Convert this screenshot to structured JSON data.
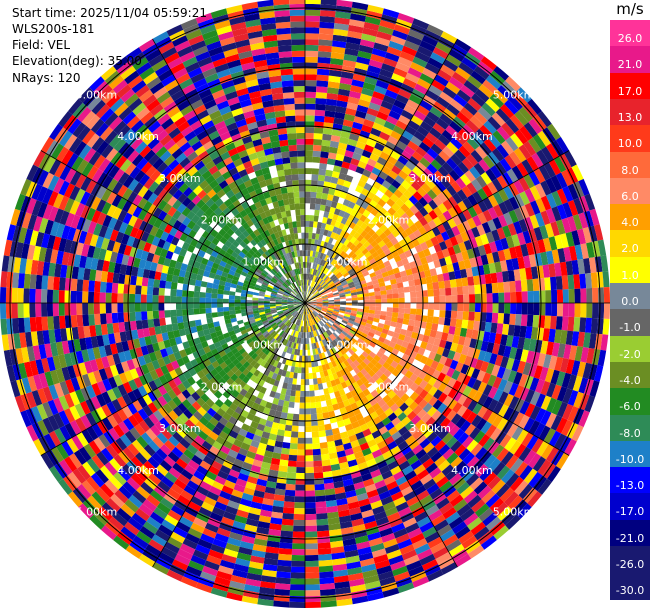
{
  "info": {
    "start_time": "Start time: 2025/11/04 05:59:21",
    "site": "WLS200s-181",
    "field": "Field: VEL",
    "elevation": "Elevation(deg): 35.00",
    "nrays": "NRays: 120"
  },
  "colorbar": {
    "unit": "m/s",
    "ticks": [
      "26.0",
      "21.0",
      "17.0",
      "13.0",
      "10.0",
      "8.0",
      "6.0",
      "4.0",
      "2.0",
      "1.0",
      "0.0",
      "-1.0",
      "-2.0",
      "-4.0",
      "-6.0",
      "-8.0",
      "-10.0",
      "-13.0",
      "-17.0",
      "-21.0",
      "-26.0",
      "-30.0"
    ],
    "colors": [
      "#ff3399",
      "#e8198a",
      "#ff0000",
      "#e8232c",
      "#ff3a1a",
      "#ff6a3a",
      "#ff8a66",
      "#ff9f00",
      "#ffd800",
      "#ffff00",
      "#778899",
      "#666666",
      "#9acd32",
      "#6b8e23",
      "#228b22",
      "#2e8b57",
      "#1e80c8",
      "#0000ff",
      "#0000cd",
      "#000080",
      "#191970",
      "#191970"
    ]
  },
  "chart_data": {
    "type": "polar-ppi",
    "field": "VEL",
    "nrays": 120,
    "range_rings_km": [
      1.0,
      2.0,
      3.0,
      4.0,
      5.0
    ],
    "ring_labels": [
      "1.00km",
      "2.00km",
      "3.00km",
      "4.00km",
      "5.00km"
    ],
    "max_range_km": 5.1,
    "colorbar_min": -30.0,
    "colorbar_max": 26.0
  }
}
